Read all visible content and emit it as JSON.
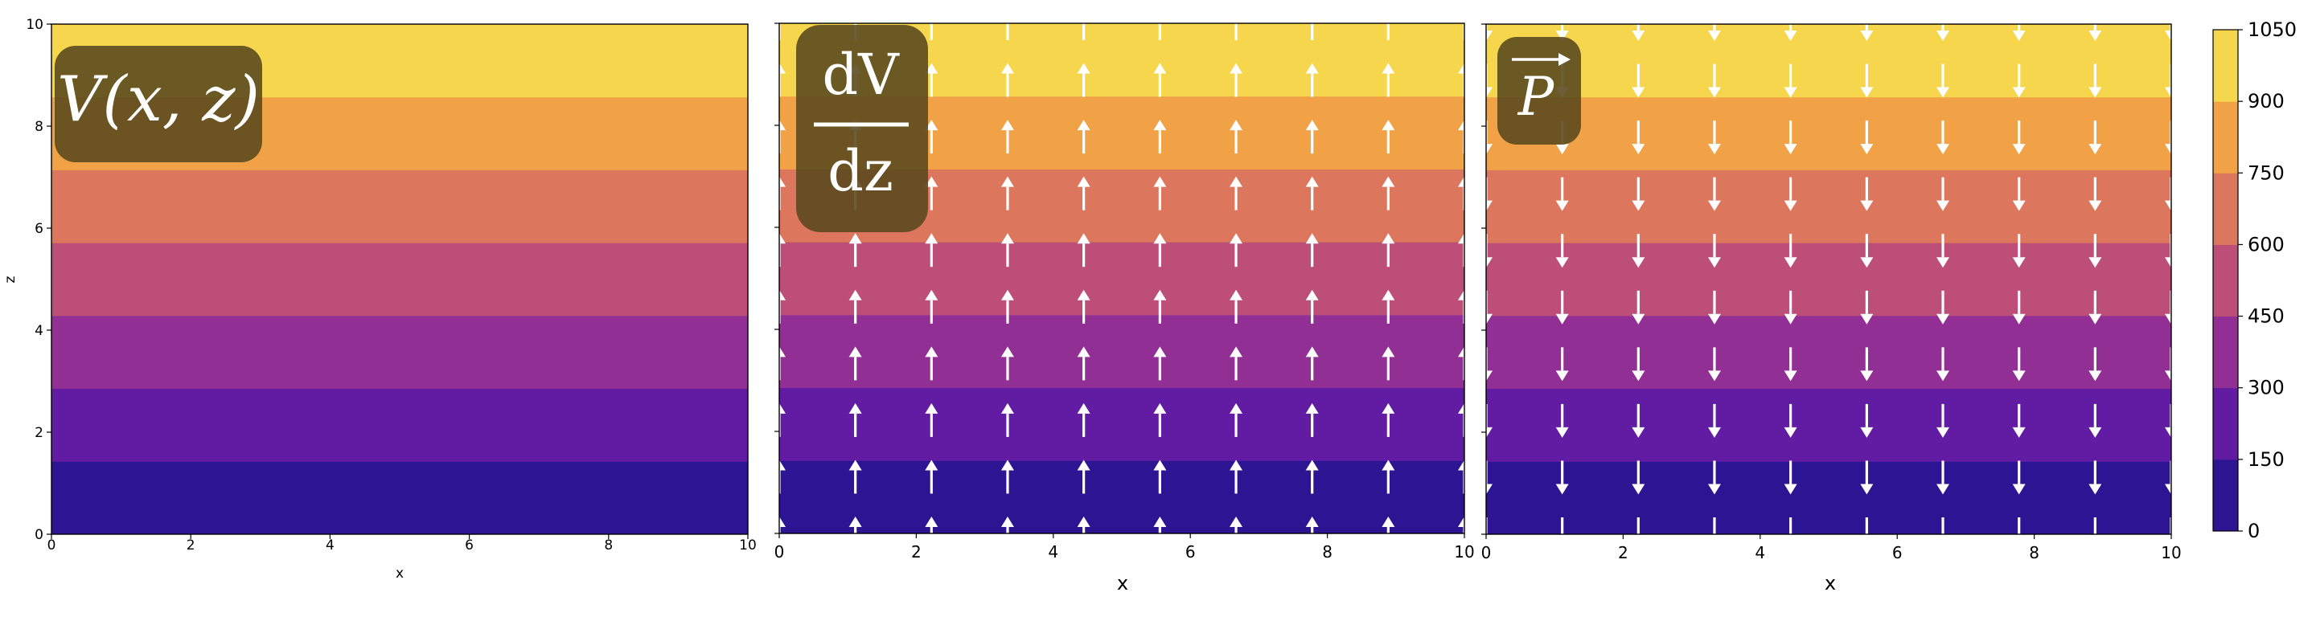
{
  "chart_data": [
    {
      "type": "heatmap",
      "plot": "potential",
      "overlay_label": "V(x, z)",
      "xlabel": "x",
      "ylabel": "z",
      "xlim": [
        0,
        10
      ],
      "ylim": [
        0,
        10
      ],
      "xticks": [
        "0",
        "2",
        "4",
        "6",
        "8",
        "10"
      ],
      "yticks": [
        "0",
        "2",
        "4",
        "6",
        "8",
        "10"
      ],
      "field": "linear in z, from 0 at z=0 to ~1050 at z=10",
      "levels": [
        0,
        150,
        300,
        450,
        600,
        750,
        900,
        1050
      ]
    },
    {
      "type": "heatmap",
      "plot": "gradient",
      "overlay_numerator": "dV",
      "overlay_denominator": "dz",
      "xlabel": "x",
      "xlim": [
        0,
        10
      ],
      "ylim": [
        0,
        10
      ],
      "xticks": [
        "0",
        "2",
        "4",
        "6",
        "8",
        "10"
      ],
      "arrows": "quiver, pointing +z (upward), uniform",
      "levels": [
        0,
        150,
        300,
        450,
        600,
        750,
        900,
        1050
      ]
    },
    {
      "type": "heatmap",
      "plot": "field",
      "overlay_label": "P",
      "xlabel": "x",
      "xlim": [
        0,
        10
      ],
      "ylim": [
        0,
        10
      ],
      "xticks": [
        "0",
        "2",
        "4",
        "6",
        "8",
        "10"
      ],
      "arrows": "quiver, pointing -z (downward), uniform",
      "levels": [
        0,
        150,
        300,
        450,
        600,
        750,
        900,
        1050
      ]
    }
  ],
  "colorbar": {
    "ticks": [
      "0",
      "150",
      "300",
      "450",
      "600",
      "750",
      "900",
      "1050"
    ],
    "colors": [
      "#2c1593",
      "#621ca4",
      "#922f94",
      "#bc4e78",
      "#dc765d",
      "#f1a146",
      "#f5d64d"
    ]
  },
  "quiver": {
    "x": [
      0.0,
      1.111,
      2.222,
      3.333,
      4.444,
      5.556,
      6.667,
      7.778,
      8.889,
      10.0
    ],
    "z": [
      0.0,
      1.111,
      2.222,
      3.333,
      4.444,
      5.556,
      6.667,
      7.778,
      8.889,
      10.0
    ],
    "arrow_color": "#ffffff"
  }
}
